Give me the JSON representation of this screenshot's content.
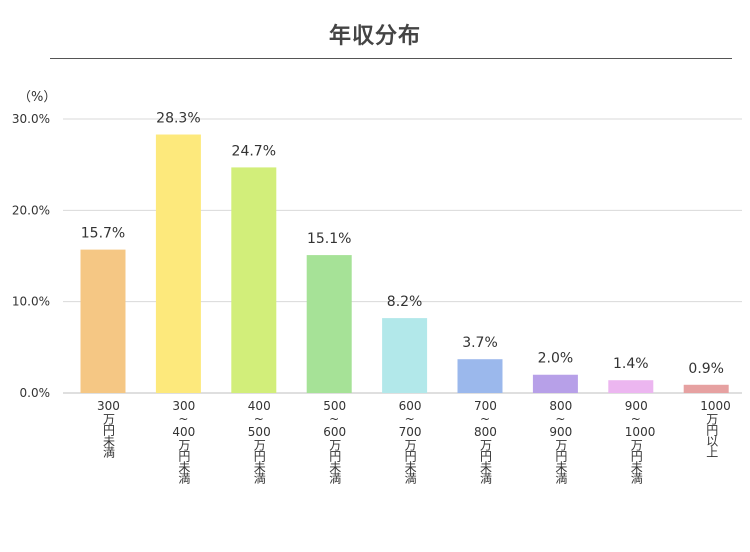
{
  "chart_data": {
    "type": "bar",
    "title": "年収分布",
    "unit_label": "（%）",
    "ylim": [
      0,
      30
    ],
    "yticks": [
      "0.0%",
      "10.0%",
      "20.0%",
      "30.0%"
    ],
    "grid": true,
    "categories": [
      {
        "top": "300",
        "sep": "",
        "bottom": "",
        "unit": "万円未満"
      },
      {
        "top": "300",
        "sep": "~",
        "bottom": "400",
        "unit": "万円未満"
      },
      {
        "top": "400",
        "sep": "~",
        "bottom": "500",
        "unit": "万円未満"
      },
      {
        "top": "500",
        "sep": "~",
        "bottom": "600",
        "unit": "万円未満"
      },
      {
        "top": "600",
        "sep": "~",
        "bottom": "700",
        "unit": "万円未満"
      },
      {
        "top": "700",
        "sep": "~",
        "bottom": "800",
        "unit": "万円未満"
      },
      {
        "top": "800",
        "sep": "~",
        "bottom": "900",
        "unit": "万円未満"
      },
      {
        "top": "900",
        "sep": "~",
        "bottom": "1000",
        "unit": "万円未満"
      },
      {
        "top": "1000",
        "sep": "",
        "bottom": "",
        "unit": "万円以上"
      }
    ],
    "values": [
      15.7,
      28.3,
      24.7,
      15.1,
      8.2,
      3.7,
      2.0,
      1.4,
      0.9
    ],
    "data_labels": [
      "15.7%",
      "28.3%",
      "24.7%",
      "15.1%",
      "8.2%",
      "3.7%",
      "2.0%",
      "1.4%",
      "0.9%"
    ],
    "colors": [
      "#f5c784",
      "#fde97c",
      "#d2ee7a",
      "#a6e297",
      "#b2e8ea",
      "#9bb8ec",
      "#b7a0e8",
      "#ecb6f0",
      "#e6a1a1"
    ]
  }
}
